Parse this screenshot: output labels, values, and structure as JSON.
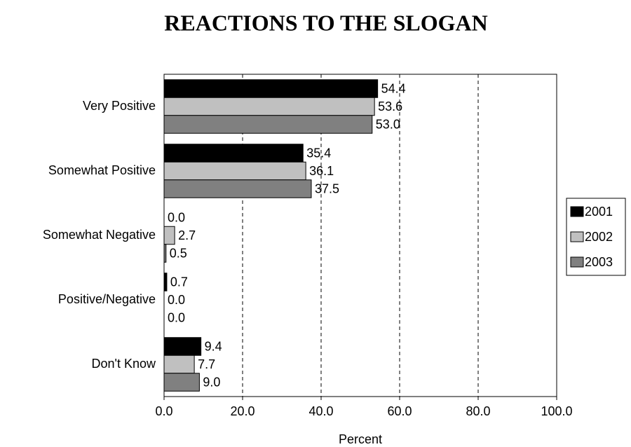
{
  "chart_data": {
    "type": "hbar",
    "title": "REACTIONS TO THE SLOGAN",
    "x_label": "Percent",
    "categories": [
      "Very Positive",
      "Somewhat Positive",
      "Somewhat Negative",
      "Positive/Negative",
      "Don't Know"
    ],
    "series": [
      {
        "name": "2001",
        "color": "#000000",
        "values": [
          54.4,
          35.4,
          0,
          0.7,
          9.4
        ],
        "value_labels": [
          "54.4",
          "35.4",
          "0.0",
          "0.7",
          "9.4"
        ]
      },
      {
        "name": "2002",
        "color": "#c0c0c0",
        "values": [
          53.6,
          36.1,
          2.7,
          0,
          7.7
        ],
        "value_labels": [
          "53.6",
          "36.1",
          "2.7",
          "0.0",
          "7.7"
        ]
      },
      {
        "name": "2003",
        "color": "#808080",
        "values": [
          53,
          37.5,
          0.5,
          0,
          9
        ],
        "value_labels": [
          "53.0",
          "37.5",
          "0.5",
          "0.0",
          "9.0"
        ]
      }
    ],
    "xlim": [
      0,
      100
    ],
    "xticks": [
      {
        "value": 0,
        "label": "0.0"
      },
      {
        "value": 20,
        "label": "20.0"
      },
      {
        "value": 40,
        "label": "40.0"
      },
      {
        "value": 60,
        "label": "60.0"
      },
      {
        "value": 80,
        "label": "80.0"
      },
      {
        "value": 100,
        "label": "100.0"
      }
    ],
    "grid": true,
    "legend": "right"
  }
}
